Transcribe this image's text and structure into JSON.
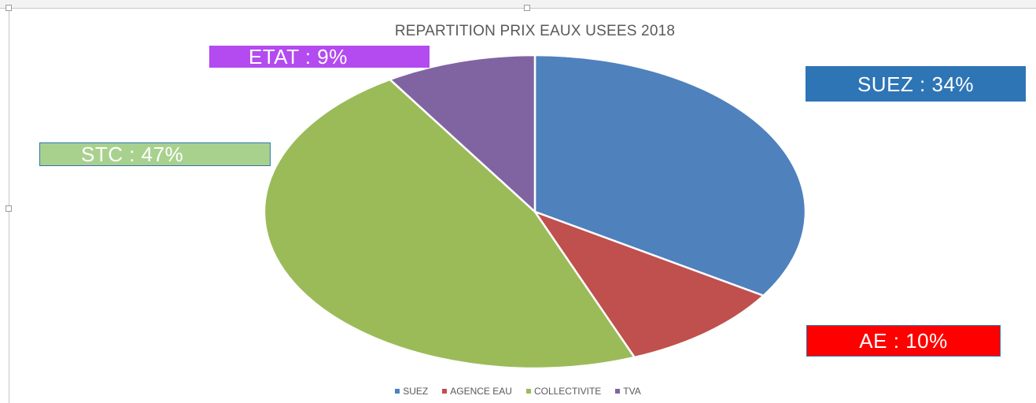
{
  "chart_data": {
    "type": "pie",
    "title": "REPARTITION PRIX EAUX USEES 2018",
    "slices": [
      {
        "name": "SUEZ",
        "value": 34,
        "color": "#4f81bd"
      },
      {
        "name": "AGENCE EAU",
        "value": 10,
        "color": "#c0504d"
      },
      {
        "name": "COLLECTIVITE",
        "value": 47,
        "color": "#9bbb59"
      },
      {
        "name": "TVA",
        "value": 9,
        "color": "#8064a2"
      }
    ],
    "callouts": [
      {
        "key": "suez",
        "text": "SUEZ : 34%",
        "color": "#2e75b6"
      },
      {
        "key": "ae",
        "text": "AE : 10%",
        "color": "#ff0000"
      },
      {
        "key": "stc",
        "text": "STC : 47%",
        "color": "#a9d18e"
      },
      {
        "key": "etat",
        "text": "ETAT : 9%",
        "color": "#b34bf0"
      }
    ],
    "legend": {
      "placement": "bottom",
      "entries": [
        "SUEZ",
        "AGENCE EAU",
        "COLLECTIVITE",
        "TVA"
      ]
    }
  }
}
